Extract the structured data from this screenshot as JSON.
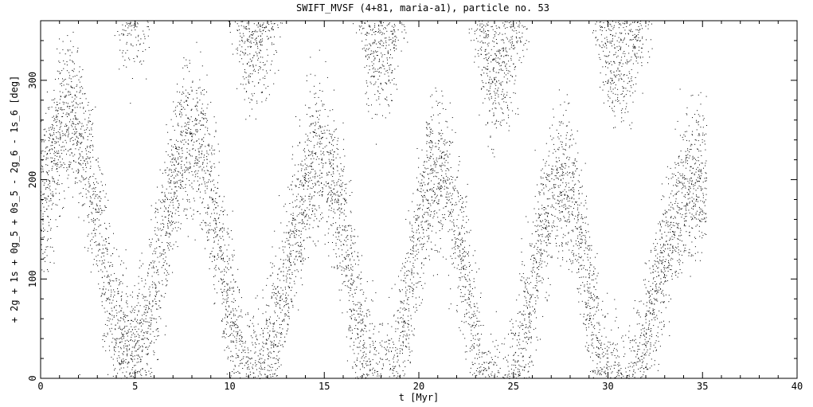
{
  "chart_data": {
    "type": "scatter",
    "title": "SWIFT_MVSF (4+81, maria-a1), particle no. 53",
    "xlabel": "t [Myr]",
    "ylabel": "+ 2g + 1s + 0g_5 + 0s_5 - 2g_6 - 1s_6 [deg]",
    "xlim": [
      0,
      40
    ],
    "ylim": [
      0,
      360
    ],
    "x_ticks": [
      0,
      5,
      10,
      15,
      20,
      25,
      30,
      35,
      40
    ],
    "x_tick_labels": [
      "0",
      "5",
      "10",
      "15",
      "20",
      "25",
      "30",
      "35",
      "40"
    ],
    "y_ticks": [
      0,
      100,
      200,
      300
    ],
    "y_tick_labels": [
      "0",
      "100",
      "200",
      "300"
    ],
    "grid": false,
    "legend": "none",
    "point_color": "#000000",
    "x_data_end": 35.2,
    "band_center_curve": {
      "description_of_values": "angle of the dense band centre (deg) vs t (Myr); wraps modulo 360",
      "t": [
        0.0,
        1.5,
        4.8,
        8.0,
        11.2,
        14.8,
        18.0,
        21.0,
        24.2,
        27.5,
        30.5,
        34.5,
        35.2
      ],
      "angle": [
        190,
        265,
        20,
        245,
        -10,
        225,
        -25,
        210,
        -45,
        200,
        -30,
        195,
        200
      ]
    },
    "band_half_width_deg": 85
  }
}
